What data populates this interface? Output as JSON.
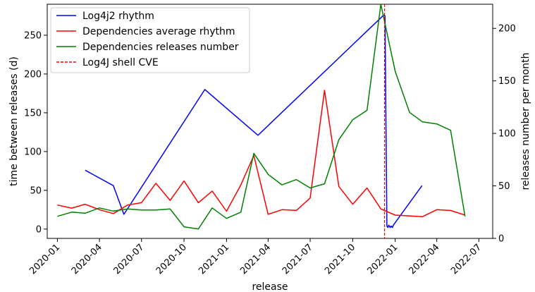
{
  "chart_data": {
    "type": "line",
    "title": "",
    "xlabel": "release",
    "ylabel": "time between releases (d)",
    "y2label": "releases number per month",
    "x_ticks": [
      "2020-01",
      "2020-04",
      "2020-07",
      "2020-10",
      "2021-01",
      "2021-04",
      "2021-07",
      "2021-10",
      "2022-01",
      "2022-04",
      "2022-07"
    ],
    "y_ticks": [
      0,
      50,
      100,
      150,
      200,
      250
    ],
    "y2_ticks": [
      0,
      50,
      100,
      150,
      200
    ],
    "xlim": [
      "2019-12-10",
      "2022-07-31"
    ],
    "ylim": [
      -12,
      290
    ],
    "y2lim": [
      0,
      223
    ],
    "legend_position": "top-left",
    "grid": false,
    "series": [
      {
        "name": "Log4j2 rhythm",
        "axis": "left",
        "color": "#0000ff",
        "points": [
          [
            "2020-03-01",
            76
          ],
          [
            "2020-05-01",
            56
          ],
          [
            "2020-05-24",
            19
          ],
          [
            "2020-11-15",
            180
          ],
          [
            "2021-03-10",
            121
          ],
          [
            "2021-12-07",
            276
          ],
          [
            "2021-12-10",
            275
          ],
          [
            "2021-12-14",
            4
          ],
          [
            "2021-12-16",
            2
          ],
          [
            "2021-12-18",
            5
          ],
          [
            "2021-12-21",
            2
          ],
          [
            "2021-12-23",
            4
          ],
          [
            "2021-12-26",
            2
          ],
          [
            "2021-12-28",
            5
          ],
          [
            "2022-02-28",
            56
          ]
        ]
      },
      {
        "name": "Dependencies average rhythm",
        "axis": "left",
        "color": "#ff0000",
        "points": [
          [
            "2020-01-01",
            31
          ],
          [
            "2020-02-01",
            27
          ],
          [
            "2020-03-01",
            32
          ],
          [
            "2020-04-01",
            25
          ],
          [
            "2020-05-01",
            20
          ],
          [
            "2020-06-01",
            31
          ],
          [
            "2020-07-01",
            34
          ],
          [
            "2020-08-01",
            59
          ],
          [
            "2020-09-01",
            37
          ],
          [
            "2020-10-01",
            62
          ],
          [
            "2020-11-01",
            34
          ],
          [
            "2020-12-01",
            49
          ],
          [
            "2021-01-01",
            23
          ],
          [
            "2021-02-01",
            57
          ],
          [
            "2021-03-01",
            95
          ],
          [
            "2021-04-01",
            19
          ],
          [
            "2021-05-01",
            25
          ],
          [
            "2021-06-01",
            24
          ],
          [
            "2021-07-01",
            40
          ],
          [
            "2021-08-01",
            179
          ],
          [
            "2021-09-01",
            55
          ],
          [
            "2021-10-01",
            32
          ],
          [
            "2021-11-01",
            53
          ],
          [
            "2021-12-01",
            26
          ],
          [
            "2022-01-01",
            18
          ],
          [
            "2022-02-01",
            17
          ],
          [
            "2022-03-01",
            16
          ],
          [
            "2022-04-01",
            25
          ],
          [
            "2022-05-01",
            24
          ],
          [
            "2022-06-01",
            18
          ]
        ]
      },
      {
        "name": "Dependencies releases number",
        "axis": "right",
        "color": "#008000",
        "points": [
          [
            "2020-01-01",
            21
          ],
          [
            "2020-02-01",
            25
          ],
          [
            "2020-03-01",
            24
          ],
          [
            "2020-04-01",
            29
          ],
          [
            "2020-05-01",
            26
          ],
          [
            "2020-06-01",
            28
          ],
          [
            "2020-07-01",
            27
          ],
          [
            "2020-08-01",
            27
          ],
          [
            "2020-09-01",
            28
          ],
          [
            "2020-10-01",
            11
          ],
          [
            "2020-11-01",
            9
          ],
          [
            "2020-12-01",
            29
          ],
          [
            "2021-01-01",
            19
          ],
          [
            "2021-02-01",
            25
          ],
          [
            "2021-03-01",
            81
          ],
          [
            "2021-04-01",
            61
          ],
          [
            "2021-05-01",
            51
          ],
          [
            "2021-06-01",
            56
          ],
          [
            "2021-07-01",
            48
          ],
          [
            "2021-08-01",
            52
          ],
          [
            "2021-09-01",
            94
          ],
          [
            "2021-10-01",
            113
          ],
          [
            "2021-11-01",
            122
          ],
          [
            "2021-12-01",
            223
          ],
          [
            "2022-01-01",
            159
          ],
          [
            "2022-02-01",
            120
          ],
          [
            "2022-03-01",
            111
          ],
          [
            "2022-04-01",
            109
          ],
          [
            "2022-05-01",
            103
          ],
          [
            "2022-06-01",
            21
          ]
        ]
      }
    ],
    "vlines": [
      {
        "name": "Log4J shell CVE",
        "x": "2021-12-09",
        "color": "#ff0000",
        "style": "dashed"
      }
    ]
  }
}
